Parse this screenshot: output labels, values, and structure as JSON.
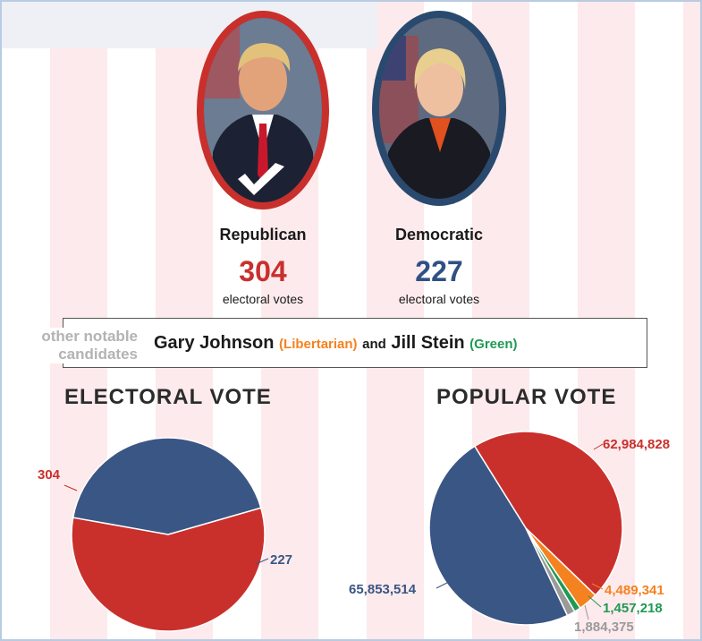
{
  "candidates": {
    "republican": {
      "party": "Republican",
      "electoral_votes": "304",
      "votes_label": "electoral votes",
      "color": "#c9302c"
    },
    "democratic": {
      "party": "Democratic",
      "electoral_votes": "227",
      "votes_label": "electoral votes",
      "color": "#2f5085"
    }
  },
  "others": {
    "label": "other notable candidates",
    "name1": "Gary Johnson",
    "party1": "(Libertarian)",
    "and": "and",
    "name2": "Jill Stein",
    "party2": "(Green)",
    "color_libertarian": "#f58220",
    "color_green": "#1f9a53"
  },
  "icons": {
    "winner": "checkmark-icon"
  },
  "chart_data": [
    {
      "type": "pie",
      "title": "ELECTORAL VOTE",
      "categories": [
        "Republican",
        "Democratic"
      ],
      "values": [
        304,
        227
      ],
      "labels": [
        "304",
        "227"
      ],
      "colors": [
        "#c9302c",
        "#3a5684"
      ]
    },
    {
      "type": "pie",
      "title": "POPULAR VOTE",
      "categories": [
        "Republican",
        "Libertarian",
        "Green",
        "Other",
        "Democratic"
      ],
      "values": [
        62984828,
        4489341,
        1457218,
        1884375,
        65853514
      ],
      "labels": [
        "62,984,828",
        "4,489,341",
        "1,457,218",
        "1,884,375",
        "65,853,514"
      ],
      "colors": [
        "#c9302c",
        "#f58220",
        "#1f9a53",
        "#9a9a9a",
        "#3a5684"
      ],
      "label_colors": [
        "#c9302c",
        "#f58220",
        "#1f9a53",
        "#9a9a9a",
        "#3a5684"
      ]
    }
  ]
}
